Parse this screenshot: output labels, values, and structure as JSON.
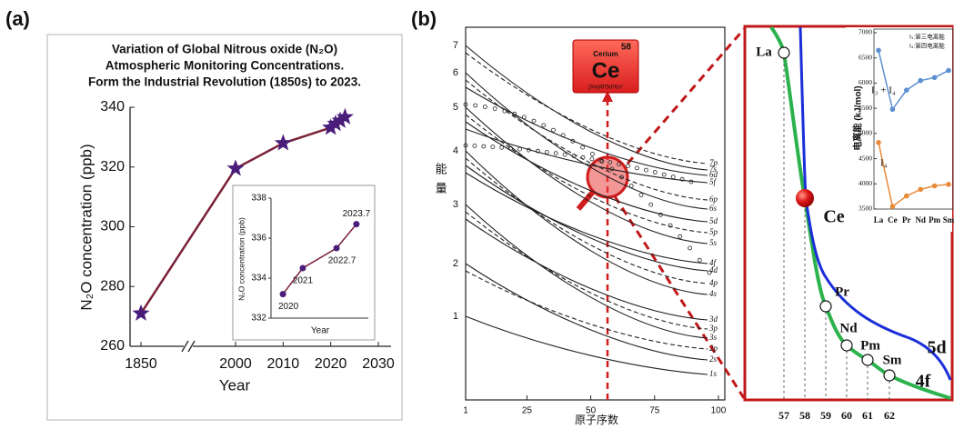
{
  "figure": {
    "panel_a_label": "(a)",
    "panel_b_label": "(b)"
  },
  "chart_data": [
    {
      "type": "line",
      "title": [
        "Variation of Global Nitrous oxide (N₂O)",
        "Atmospheric Monitoring Concentrations.",
        "Form the Industrial Revolution (1850s)  to 2023."
      ],
      "x_label": "Year",
      "y_label": "N₂O concentration (ppb)",
      "x": [
        1850,
        2000,
        2010,
        2020,
        2021,
        2022,
        2023
      ],
      "values": [
        271,
        319.5,
        328,
        333.2,
        334.5,
        335.5,
        336.7
      ],
      "color": "#7a2238",
      "marker_color": "#4a1d7a",
      "ylim": [
        260,
        340
      ],
      "yticks": [
        260,
        280,
        300,
        320,
        340
      ],
      "xticks": [
        1850,
        2000,
        2010,
        2020,
        2030
      ],
      "axis_break": true
    },
    {
      "type": "line",
      "x_label": "Year",
      "y_label": "N₂O concentration (ppb)",
      "x": [
        2020,
        2021,
        2022.7,
        2023.7
      ],
      "values": [
        333.2,
        334.5,
        335.5,
        336.7
      ],
      "xlim": [
        2019.4,
        2024.3
      ],
      "color": "#7a2238",
      "marker_color": "#4a1d7a",
      "ylim": [
        332,
        338
      ],
      "yticks": [
        332,
        334,
        336,
        338
      ]
    },
    {
      "type": "line",
      "y_label": "电离能 (kJ/mol)",
      "categories": [
        "La",
        "Ce",
        "Pr",
        "Nd",
        "Pm",
        "Sm"
      ],
      "highlight_index": 1,
      "highlight_color": "#e02020",
      "series": [
        {
          "name": "I₃ + I₄",
          "color": "#5b8fd0",
          "values": [
            6650,
            5480,
            5860,
            6050,
            6110,
            6250
          ]
        },
        {
          "name": "I₄",
          "color": "#e88a3a",
          "values": [
            4820,
            3550,
            3760,
            3890,
            3960,
            3990
          ]
        }
      ],
      "legend_notes": [
        "I₃:第三电离能",
        "I₄:第四电离能"
      ],
      "ylim": [
        3500,
        7000
      ],
      "yticks": [
        3500,
        4000,
        4500,
        5000,
        5500,
        6000,
        6500,
        7000
      ]
    }
  ],
  "orbital_diagram": {
    "y_label": "能量",
    "x_label": "原子序数",
    "xlim": [
      1,
      102.5
    ],
    "xticks": [
      1,
      25,
      50,
      75,
      100
    ],
    "levels": [
      "1",
      "2",
      "3",
      "4",
      "5",
      "6",
      "7"
    ],
    "curves": [
      "7p",
      "7s",
      "6d",
      "5f",
      "6p",
      "6s",
      "5d",
      "5p",
      "5s",
      "4f",
      "4d",
      "4p",
      "4s",
      "3d",
      "3p",
      "3s",
      "2p",
      "2s",
      "1s"
    ]
  },
  "element_card": {
    "name": "Cerium",
    "number": "58",
    "symbol": "Ce",
    "configuration": "[Xe]4f¹5d¹6s²"
  },
  "trend_panel": {
    "elements": [
      "La",
      "Ce",
      "Pr",
      "Nd",
      "Pm",
      "Sm"
    ],
    "atomic_numbers": [
      "57",
      "58",
      "59",
      "60",
      "61",
      "62"
    ],
    "curve_labels": [
      "5d",
      "4f"
    ],
    "highlight_index": 1
  }
}
